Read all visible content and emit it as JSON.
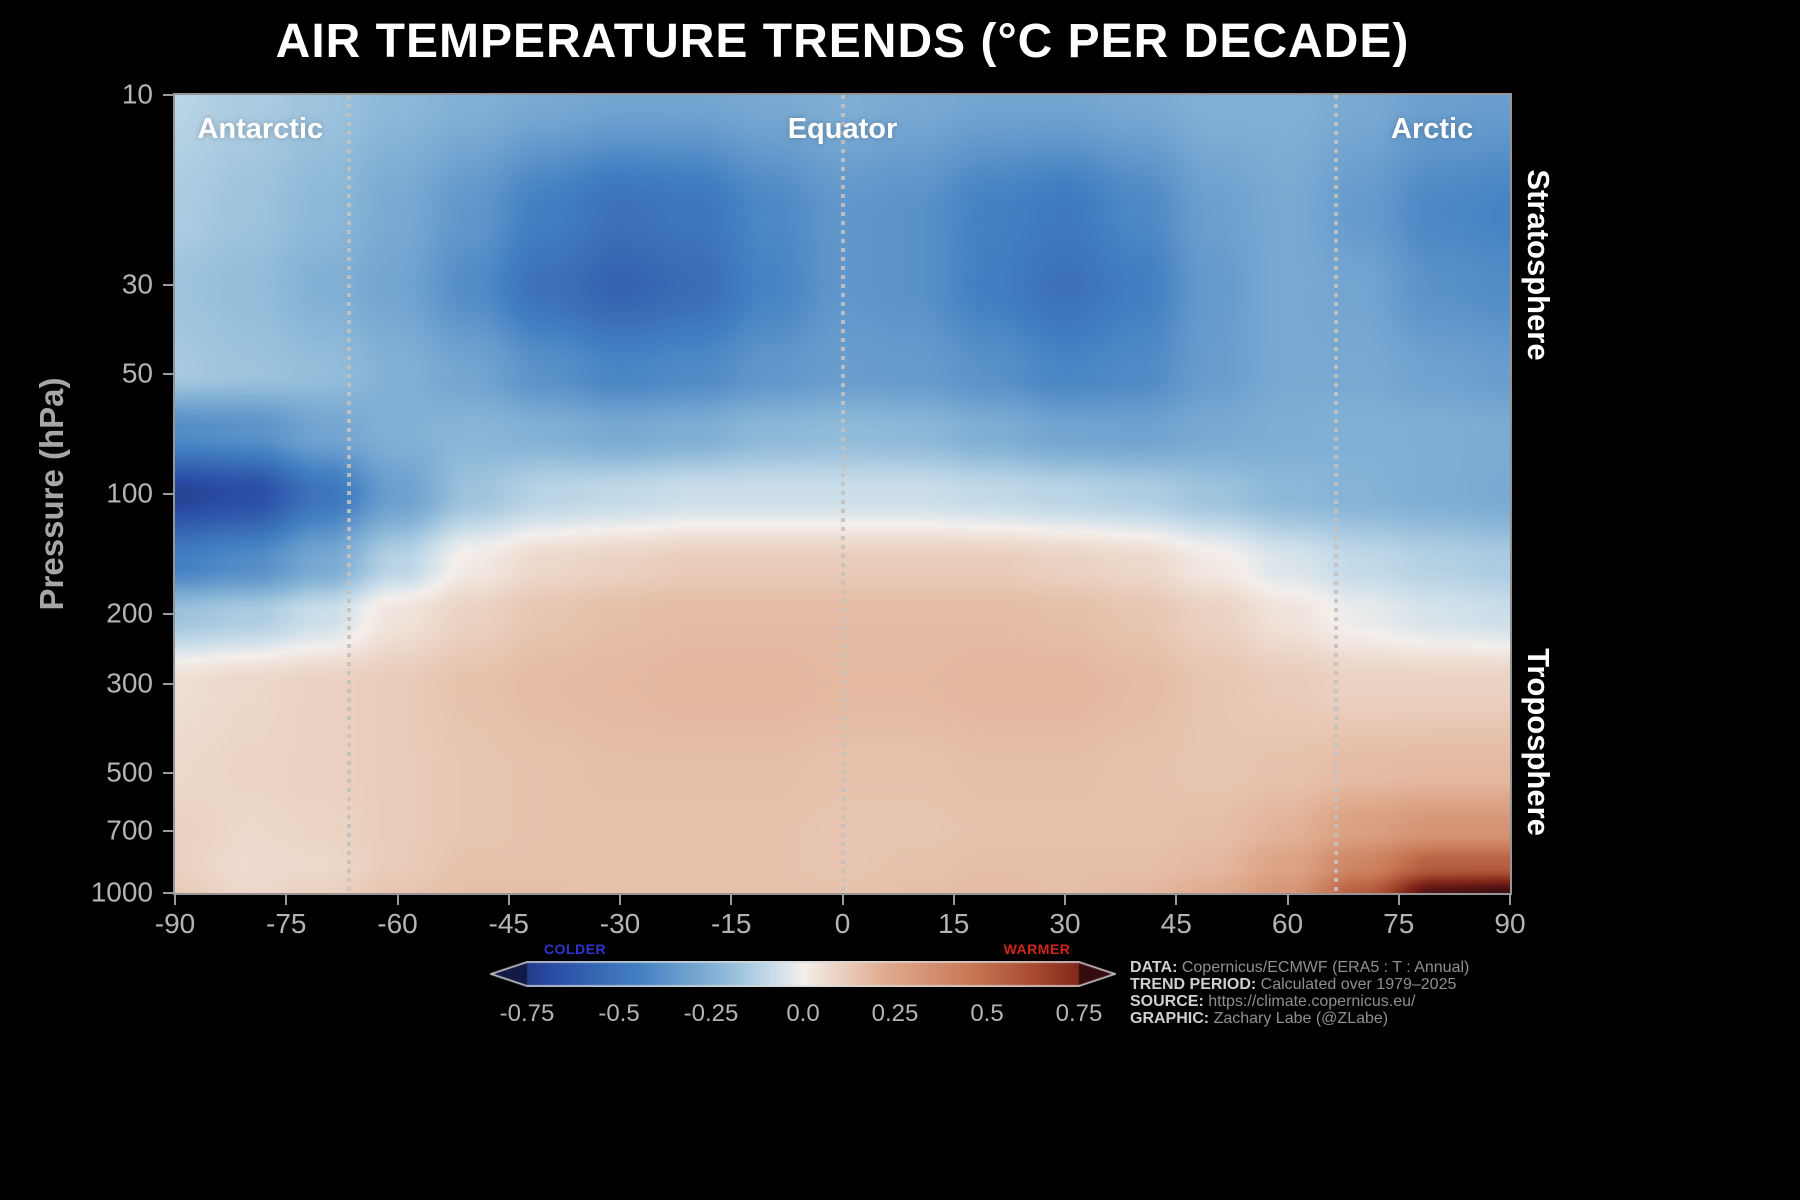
{
  "side_labels": {
    "stratosphere": "Stratosphere",
    "troposphere": "Troposphere"
  },
  "axes": {
    "y_ticks": [
      10,
      30,
      50,
      100,
      200,
      300,
      500,
      700,
      1000
    ],
    "x_ticks": [
      -90,
      -75,
      -60,
      -45,
      -30,
      -15,
      0,
      15,
      30,
      45,
      60,
      75,
      90
    ]
  },
  "region_labels": [
    {
      "label": "Antarctic",
      "lat": -78.5
    },
    {
      "label": "Equator",
      "lat": 0
    },
    {
      "label": "Arctic",
      "lat": 79.5
    }
  ],
  "colorbar": {
    "tick_labels": [
      "-0.75",
      "-0.5",
      "-0.25",
      "0.0",
      "0.25",
      "0.5",
      "0.75"
    ],
    "colder_label": "COLDER",
    "warmer_label": "WARMER",
    "colder_color": "#2e34d0",
    "warmer_color": "#d1261a"
  },
  "credits": [
    {
      "label": "DATA:",
      "value": "Copernicus/ECMWF (ERA5 : T : Annual)"
    },
    {
      "label": "TREND PERIOD:",
      "value": "Calculated over 1979–2025"
    },
    {
      "label": "SOURCE:",
      "value": "https://climate.copernicus.eu/"
    },
    {
      "label": "GRAPHIC:",
      "value": "Zachary Labe (@ZLabe)"
    }
  ],
  "chart_data": {
    "type": "heatmap",
    "title": "AIR TEMPERATURE TRENDS (°C PER DECADE)",
    "xlabel": "",
    "ylabel": "Pressure (hPa)",
    "values_unit": "°C per decade",
    "y_scale": "log",
    "x_range": [
      -90,
      90
    ],
    "y_range_hPa": [
      10,
      1000
    ],
    "x_latitudes": [
      -90,
      -80,
      -70,
      -60,
      -50,
      -40,
      -30,
      -20,
      -10,
      0,
      10,
      20,
      30,
      40,
      50,
      60,
      70,
      80,
      90
    ],
    "y_pressures_hPa": [
      10,
      20,
      30,
      50,
      70,
      100,
      150,
      200,
      300,
      500,
      700,
      850,
      1000
    ],
    "values": [
      [
        -0.12,
        -0.15,
        -0.18,
        -0.22,
        -0.25,
        -0.28,
        -0.3,
        -0.3,
        -0.28,
        -0.26,
        -0.28,
        -0.3,
        -0.3,
        -0.28,
        -0.25,
        -0.25,
        -0.28,
        -0.32,
        -0.33
      ],
      [
        -0.15,
        -0.18,
        -0.22,
        -0.28,
        -0.36,
        -0.46,
        -0.52,
        -0.5,
        -0.42,
        -0.36,
        -0.38,
        -0.45,
        -0.48,
        -0.42,
        -0.32,
        -0.28,
        -0.34,
        -0.42,
        -0.44
      ],
      [
        -0.18,
        -0.2,
        -0.25,
        -0.3,
        -0.4,
        -0.52,
        -0.58,
        -0.54,
        -0.44,
        -0.36,
        -0.38,
        -0.46,
        -0.52,
        -0.46,
        -0.34,
        -0.28,
        -0.3,
        -0.38,
        -0.4
      ],
      [
        -0.16,
        -0.18,
        -0.2,
        -0.25,
        -0.3,
        -0.38,
        -0.43,
        -0.41,
        -0.36,
        -0.33,
        -0.34,
        -0.38,
        -0.43,
        -0.41,
        -0.33,
        -0.28,
        -0.28,
        -0.31,
        -0.33
      ],
      [
        -0.4,
        -0.38,
        -0.3,
        -0.25,
        -0.23,
        -0.25,
        -0.28,
        -0.26,
        -0.22,
        -0.21,
        -0.22,
        -0.26,
        -0.3,
        -0.31,
        -0.28,
        -0.26,
        -0.25,
        -0.26,
        -0.27
      ],
      [
        -0.72,
        -0.68,
        -0.5,
        -0.32,
        -0.18,
        -0.12,
        -0.1,
        -0.08,
        -0.08,
        -0.08,
        -0.08,
        -0.1,
        -0.12,
        -0.14,
        -0.18,
        -0.22,
        -0.24,
        -0.26,
        -0.28
      ],
      [
        -0.45,
        -0.4,
        -0.28,
        -0.12,
        0.02,
        0.08,
        0.1,
        0.12,
        0.12,
        0.12,
        0.12,
        0.12,
        0.1,
        0.08,
        0.02,
        -0.05,
        -0.1,
        -0.13,
        -0.15
      ],
      [
        -0.18,
        -0.15,
        -0.08,
        0.04,
        0.1,
        0.14,
        0.16,
        0.17,
        0.17,
        0.17,
        0.17,
        0.17,
        0.16,
        0.14,
        0.1,
        0.04,
        -0.02,
        -0.06,
        -0.08
      ],
      [
        0.06,
        0.08,
        0.1,
        0.12,
        0.15,
        0.17,
        0.18,
        0.19,
        0.19,
        0.18,
        0.18,
        0.19,
        0.19,
        0.17,
        0.14,
        0.12,
        0.1,
        0.1,
        0.1
      ],
      [
        0.08,
        0.09,
        0.1,
        0.12,
        0.14,
        0.15,
        0.16,
        0.16,
        0.16,
        0.15,
        0.15,
        0.16,
        0.16,
        0.15,
        0.14,
        0.15,
        0.17,
        0.18,
        0.18
      ],
      [
        0.1,
        0.08,
        0.09,
        0.12,
        0.14,
        0.15,
        0.15,
        0.15,
        0.15,
        0.14,
        0.14,
        0.15,
        0.15,
        0.15,
        0.16,
        0.2,
        0.28,
        0.33,
        0.33
      ],
      [
        0.1,
        0.07,
        0.08,
        0.12,
        0.15,
        0.15,
        0.15,
        0.15,
        0.15,
        0.14,
        0.15,
        0.16,
        0.16,
        0.16,
        0.18,
        0.26,
        0.4,
        0.55,
        0.55
      ],
      [
        0.12,
        0.08,
        0.1,
        0.14,
        0.16,
        0.16,
        0.15,
        0.15,
        0.15,
        0.15,
        0.16,
        0.17,
        0.16,
        0.18,
        0.22,
        0.32,
        0.55,
        0.85,
        0.88
      ]
    ],
    "value_range": [
      -0.9,
      0.9
    ],
    "colorbar_range": [
      -0.75,
      0.75
    ],
    "reference_lines_lat": [
      -66.5,
      0,
      66.5
    ],
    "colormap_stops": [
      [
        -0.9,
        "#131a45"
      ],
      [
        -0.68,
        "#2a4da6"
      ],
      [
        -0.45,
        "#4380c2"
      ],
      [
        -0.22,
        "#8cb8d8"
      ],
      [
        -0.09,
        "#c6dce9"
      ],
      [
        0.0,
        "#f3efec"
      ],
      [
        0.09,
        "#ecd5c6"
      ],
      [
        0.22,
        "#e0ac90"
      ],
      [
        0.45,
        "#c97a57"
      ],
      [
        0.63,
        "#a84a30"
      ],
      [
        0.77,
        "#7c2218"
      ],
      [
        0.9,
        "#350b10"
      ]
    ]
  }
}
